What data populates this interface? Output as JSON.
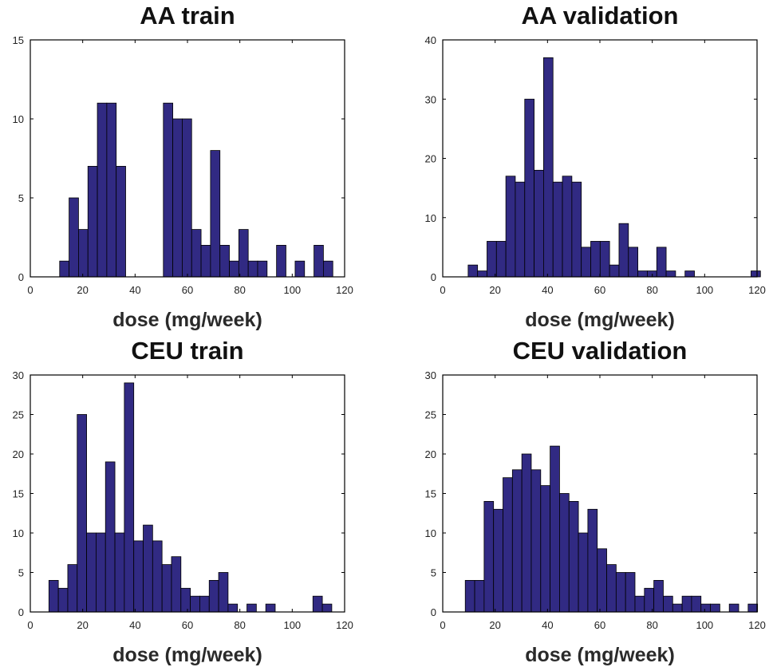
{
  "chart_data": [
    {
      "type": "bar",
      "title": "AA train",
      "xlabel": "dose (mg/week)",
      "ylabel": "",
      "xlim": [
        0,
        120
      ],
      "ylim": [
        0,
        15
      ],
      "xticks": [
        0,
        20,
        40,
        60,
        80,
        100,
        120
      ],
      "yticks": [
        0,
        5,
        10,
        15
      ],
      "bin_width": 3.6,
      "bar_color": "#312a83",
      "bins": [
        {
          "x": 13.0,
          "count": 1
        },
        {
          "x": 16.6,
          "count": 5
        },
        {
          "x": 20.2,
          "count": 3
        },
        {
          "x": 23.8,
          "count": 7
        },
        {
          "x": 27.4,
          "count": 11
        },
        {
          "x": 31.0,
          "count": 11
        },
        {
          "x": 34.6,
          "count": 7
        },
        {
          "x": 52.6,
          "count": 11
        },
        {
          "x": 56.2,
          "count": 10
        },
        {
          "x": 59.8,
          "count": 10
        },
        {
          "x": 63.4,
          "count": 3
        },
        {
          "x": 67.0,
          "count": 2
        },
        {
          "x": 70.6,
          "count": 8
        },
        {
          "x": 74.2,
          "count": 2
        },
        {
          "x": 77.8,
          "count": 1
        },
        {
          "x": 81.4,
          "count": 3
        },
        {
          "x": 85.0,
          "count": 1
        },
        {
          "x": 88.6,
          "count": 1
        },
        {
          "x": 95.8,
          "count": 2
        },
        {
          "x": 102.9,
          "count": 1
        },
        {
          "x": 110.1,
          "count": 2
        },
        {
          "x": 113.7,
          "count": 1
        }
      ]
    },
    {
      "type": "bar",
      "title": "AA validation",
      "xlabel": "dose (mg/week)",
      "ylabel": "",
      "xlim": [
        0,
        120
      ],
      "ylim": [
        0,
        40
      ],
      "xticks": [
        0,
        20,
        40,
        60,
        80,
        100,
        120
      ],
      "yticks": [
        0,
        10,
        20,
        30,
        40
      ],
      "bin_width": 3.6,
      "bar_color": "#312a83",
      "bins": [
        {
          "x": 11.5,
          "count": 2
        },
        {
          "x": 15.1,
          "count": 1
        },
        {
          "x": 18.7,
          "count": 6
        },
        {
          "x": 22.3,
          "count": 6
        },
        {
          "x": 25.9,
          "count": 17
        },
        {
          "x": 29.5,
          "count": 16
        },
        {
          "x": 33.1,
          "count": 30
        },
        {
          "x": 36.7,
          "count": 18
        },
        {
          "x": 40.3,
          "count": 37
        },
        {
          "x": 43.9,
          "count": 16
        },
        {
          "x": 47.5,
          "count": 17
        },
        {
          "x": 51.1,
          "count": 16
        },
        {
          "x": 54.7,
          "count": 5
        },
        {
          "x": 58.3,
          "count": 6
        },
        {
          "x": 61.9,
          "count": 6
        },
        {
          "x": 65.5,
          "count": 2
        },
        {
          "x": 69.1,
          "count": 9
        },
        {
          "x": 72.7,
          "count": 5
        },
        {
          "x": 76.3,
          "count": 1
        },
        {
          "x": 79.9,
          "count": 1
        },
        {
          "x": 83.5,
          "count": 5
        },
        {
          "x": 87.1,
          "count": 1
        },
        {
          "x": 94.3,
          "count": 1
        },
        {
          "x": 119.5,
          "count": 1
        }
      ]
    },
    {
      "type": "bar",
      "title": "CEU train",
      "xlabel": "dose (mg/week)",
      "ylabel": "",
      "xlim": [
        0,
        120
      ],
      "ylim": [
        0,
        30
      ],
      "xticks": [
        0,
        20,
        40,
        60,
        80,
        100,
        120
      ],
      "yticks": [
        0,
        5,
        10,
        15,
        20,
        25,
        30
      ],
      "bin_width": 3.6,
      "bar_color": "#312a83",
      "bins": [
        {
          "x": 8.9,
          "count": 4
        },
        {
          "x": 12.5,
          "count": 3
        },
        {
          "x": 16.1,
          "count": 6
        },
        {
          "x": 19.7,
          "count": 25
        },
        {
          "x": 23.3,
          "count": 10
        },
        {
          "x": 26.9,
          "count": 10
        },
        {
          "x": 30.5,
          "count": 19
        },
        {
          "x": 34.1,
          "count": 10
        },
        {
          "x": 37.7,
          "count": 29
        },
        {
          "x": 41.3,
          "count": 9
        },
        {
          "x": 44.9,
          "count": 11
        },
        {
          "x": 48.5,
          "count": 9
        },
        {
          "x": 52.1,
          "count": 6
        },
        {
          "x": 55.7,
          "count": 7
        },
        {
          "x": 59.3,
          "count": 3
        },
        {
          "x": 62.9,
          "count": 2
        },
        {
          "x": 66.5,
          "count": 2
        },
        {
          "x": 70.1,
          "count": 4
        },
        {
          "x": 73.7,
          "count": 5
        },
        {
          "x": 77.3,
          "count": 1
        },
        {
          "x": 84.5,
          "count": 1
        },
        {
          "x": 91.7,
          "count": 1
        },
        {
          "x": 109.7,
          "count": 2
        },
        {
          "x": 113.3,
          "count": 1
        }
      ]
    },
    {
      "type": "bar",
      "title": "CEU validation",
      "xlabel": "dose (mg/week)",
      "ylabel": "",
      "xlim": [
        0,
        120
      ],
      "ylim": [
        0,
        30
      ],
      "xticks": [
        0,
        20,
        40,
        60,
        80,
        100,
        120
      ],
      "yticks": [
        0,
        5,
        10,
        15,
        20,
        25,
        30
      ],
      "bin_width": 3.6,
      "bar_color": "#312a83",
      "bins": [
        {
          "x": 10.4,
          "count": 4
        },
        {
          "x": 14.0,
          "count": 4
        },
        {
          "x": 17.6,
          "count": 14
        },
        {
          "x": 21.2,
          "count": 13
        },
        {
          "x": 24.8,
          "count": 17
        },
        {
          "x": 28.4,
          "count": 18
        },
        {
          "x": 32.0,
          "count": 20
        },
        {
          "x": 35.6,
          "count": 18
        },
        {
          "x": 39.2,
          "count": 16
        },
        {
          "x": 42.8,
          "count": 21
        },
        {
          "x": 46.4,
          "count": 15
        },
        {
          "x": 50.0,
          "count": 14
        },
        {
          "x": 53.6,
          "count": 10
        },
        {
          "x": 57.2,
          "count": 13
        },
        {
          "x": 60.8,
          "count": 8
        },
        {
          "x": 64.4,
          "count": 6
        },
        {
          "x": 68.0,
          "count": 5
        },
        {
          "x": 71.6,
          "count": 5
        },
        {
          "x": 75.2,
          "count": 2
        },
        {
          "x": 78.8,
          "count": 3
        },
        {
          "x": 82.4,
          "count": 4
        },
        {
          "x": 86.0,
          "count": 2
        },
        {
          "x": 89.6,
          "count": 1
        },
        {
          "x": 93.2,
          "count": 2
        },
        {
          "x": 96.8,
          "count": 2
        },
        {
          "x": 100.4,
          "count": 1
        },
        {
          "x": 104.0,
          "count": 1
        },
        {
          "x": 111.2,
          "count": 1
        },
        {
          "x": 118.4,
          "count": 1
        }
      ]
    }
  ]
}
